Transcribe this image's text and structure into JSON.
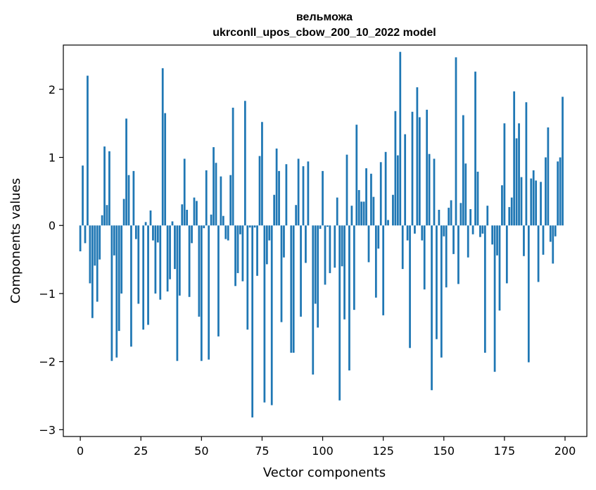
{
  "chart_data": {
    "type": "bar",
    "title": "вельможа",
    "subtitle": "ukrconll_upos_cbow_200_10_2022 model",
    "xlabel": "Vector components",
    "ylabel": "Components values",
    "xlim": [
      -7,
      209
    ],
    "ylim": [
      -3.1,
      2.65
    ],
    "xticks": [
      0,
      25,
      50,
      75,
      100,
      125,
      150,
      175,
      200
    ],
    "xtick_labels": [
      "0",
      "25",
      "50",
      "75",
      "100",
      "125",
      "150",
      "175",
      "200"
    ],
    "yticks": [
      -3,
      -2,
      -1,
      0,
      1,
      2
    ],
    "ytick_labels": [
      "−3",
      "−2",
      "−1",
      "0",
      "1",
      "2"
    ],
    "bar_color": "#1f77b4",
    "grid": false,
    "x": [
      0,
      1,
      2,
      3,
      4,
      5,
      6,
      7,
      8,
      9,
      10,
      11,
      12,
      13,
      14,
      15,
      16,
      17,
      18,
      19,
      20,
      21,
      22,
      23,
      24,
      25,
      26,
      27,
      28,
      29,
      30,
      31,
      32,
      33,
      34,
      35,
      36,
      37,
      38,
      39,
      40,
      41,
      42,
      43,
      44,
      45,
      46,
      47,
      48,
      49,
      50,
      51,
      52,
      53,
      54,
      55,
      56,
      57,
      58,
      59,
      60,
      61,
      62,
      63,
      64,
      65,
      66,
      67,
      68,
      69,
      70,
      71,
      72,
      73,
      74,
      75,
      76,
      77,
      78,
      79,
      80,
      81,
      82,
      83,
      84,
      85,
      86,
      87,
      88,
      89,
      90,
      91,
      92,
      93,
      94,
      95,
      96,
      97,
      98,
      99,
      100,
      101,
      102,
      103,
      104,
      105,
      106,
      107,
      108,
      109,
      110,
      111,
      112,
      113,
      114,
      115,
      116,
      117,
      118,
      119,
      120,
      121,
      122,
      123,
      124,
      125,
      126,
      127,
      128,
      129,
      130,
      131,
      132,
      133,
      134,
      135,
      136,
      137,
      138,
      139,
      140,
      141,
      142,
      143,
      144,
      145,
      146,
      147,
      148,
      149,
      150,
      151,
      152,
      153,
      154,
      155,
      156,
      157,
      158,
      159,
      160,
      161,
      162,
      163,
      164,
      165,
      166,
      167,
      168,
      169,
      170,
      171,
      172,
      173,
      174,
      175,
      176,
      177,
      178,
      179,
      180,
      181,
      182,
      183,
      184,
      185,
      186,
      187,
      188,
      189,
      190,
      191,
      192,
      193,
      194,
      195,
      196,
      197,
      198,
      199
    ],
    "values": [
      -0.38,
      0.88,
      -0.26,
      2.2,
      -0.85,
      -1.36,
      -0.59,
      -1.12,
      -0.5,
      0.15,
      1.16,
      0.3,
      1.09,
      -1.99,
      -0.44,
      -1.94,
      -1.55,
      -1.0,
      0.39,
      1.57,
      0.74,
      -1.78,
      0.8,
      -0.2,
      -1.15,
      0.0,
      -1.53,
      0.05,
      -1.46,
      0.22,
      -0.22,
      -1.0,
      -0.25,
      -1.09,
      2.31,
      1.65,
      -0.97,
      -0.79,
      0.06,
      -0.64,
      -1.99,
      -1.03,
      0.31,
      0.98,
      0.23,
      -1.05,
      -0.26,
      0.41,
      0.36,
      -1.34,
      -1.99,
      -0.04,
      0.81,
      -1.97,
      0.16,
      1.15,
      0.92,
      -1.63,
      0.72,
      0.14,
      -0.2,
      -0.22,
      0.74,
      1.73,
      -0.89,
      -0.7,
      -0.13,
      -0.82,
      1.83,
      -1.53,
      -0.03,
      -2.82,
      -0.03,
      -0.74,
      1.02,
      1.52,
      -2.6,
      -0.57,
      -0.22,
      -2.64,
      0.45,
      1.13,
      0.8,
      -1.42,
      -0.47,
      0.9,
      0.0,
      -1.87,
      -1.87,
      0.3,
      0.98,
      -1.34,
      0.87,
      -0.55,
      0.94,
      0.0,
      -2.19,
      -1.15,
      -1.5,
      -0.05,
      0.8,
      -0.87,
      -0.02,
      -0.7,
      0.0,
      -0.62,
      0.41,
      -2.57,
      -0.6,
      -1.38,
      1.04,
      -2.13,
      0.29,
      -1.24,
      1.48,
      0.52,
      0.35,
      0.35,
      0.84,
      -0.54,
      0.76,
      0.42,
      -1.06,
      -0.34,
      0.93,
      -1.32,
      1.08,
      0.08,
      0.0,
      0.45,
      1.68,
      1.03,
      2.55,
      -0.64,
      1.34,
      -0.22,
      -1.8,
      1.67,
      -0.12,
      2.03,
      1.59,
      -0.22,
      -0.94,
      1.7,
      1.05,
      -2.42,
      0.98,
      -1.67,
      0.23,
      -1.94,
      -0.16,
      -0.91,
      0.26,
      0.37,
      -0.42,
      2.47,
      -0.86,
      0.33,
      1.62,
      0.91,
      -0.47,
      0.24,
      -0.13,
      2.26,
      0.79,
      -0.17,
      -0.12,
      -1.87,
      0.29,
      0.0,
      -0.28,
      -2.15,
      -0.44,
      -1.25,
      0.59,
      1.5,
      -0.85,
      0.27,
      0.41,
      1.97,
      1.28,
      1.5,
      0.71,
      -0.45,
      1.81,
      -2.01,
      0.69,
      0.81,
      0.66,
      -0.83,
      0.64,
      -0.43,
      1.0,
      1.44,
      -0.24,
      -0.56,
      -0.16,
      0.94,
      1.0,
      1.89
    ]
  }
}
